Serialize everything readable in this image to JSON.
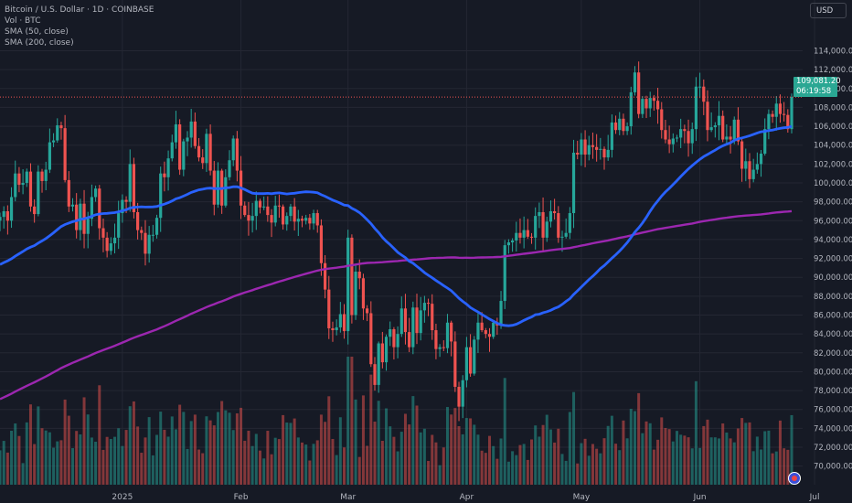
{
  "legend": {
    "symbol": "Bitcoin / U.S. Dollar · 1D · COINBASE",
    "vol": "Vol · BTC",
    "sma50": "SMA (50, close)",
    "sma200": "SMA (200, close)"
  },
  "currency_button": "USD",
  "last_price": {
    "value": "109,081.20",
    "countdown": "06:19:58"
  },
  "colors": {
    "background": "#161a25",
    "up": "#26a69a",
    "down": "#ef5350",
    "sma50": "#2962ff",
    "sma200": "#9c27b0",
    "grid": "#242733",
    "axis_text": "#b2b5be"
  },
  "chart_data": {
    "type": "candlestick",
    "title": "Bitcoin / U.S. Dollar · 1D · COINBASE",
    "x_ticks": [
      "2025",
      "Feb",
      "Mar",
      "Apr",
      "May",
      "Jun",
      "Jul"
    ],
    "y_ticks": [
      "114,000.00",
      "112,000.00",
      "110,000.00",
      "108,000.00",
      "106,000.00",
      "104,000.00",
      "102,000.00",
      "100,000.00",
      "98,000.00",
      "96,000.00",
      "94,000.00",
      "92,000.00",
      "90,000.00",
      "88,000.00",
      "86,000.00",
      "84,000.00",
      "82,000.00",
      "80,000.00",
      "78,000.00",
      "76,000.00",
      "74,000.00",
      "72,000.00",
      "70,000.00"
    ],
    "ylim": [
      69000,
      115500
    ],
    "y_tick_values": [
      114000,
      112000,
      110000,
      108000,
      106000,
      104000,
      102000,
      100000,
      98000,
      96000,
      94000,
      92000,
      90000,
      88000,
      86000,
      84000,
      82000,
      80000,
      78000,
      76000,
      74000,
      72000,
      70000
    ],
    "x_tick_days": [
      32,
      63,
      91,
      122,
      152,
      183,
      213
    ],
    "start_date": "2024-12-01",
    "close": [
      96400,
      97000,
      96000,
      98500,
      101000,
      99800,
      100000,
      101200,
      97500,
      96700,
      101200,
      100200,
      101400,
      104300,
      104500,
      106100,
      105800,
      100300,
      97500,
      97700,
      95000,
      97800,
      94600,
      96200,
      98500,
      99400,
      95200,
      94200,
      92800,
      93600,
      94200,
      96800,
      98200,
      98000,
      102000,
      96900,
      95000,
      94700,
      92500,
      94500,
      94500,
      96300,
      101000,
      100600,
      102600,
      104300,
      106200,
      101400,
      104400,
      104800,
      106500,
      103900,
      102700,
      102100,
      105200,
      101300,
      97700,
      101300,
      97600,
      100600,
      102400,
      104700,
      101300,
      97600,
      96600,
      96000,
      96500,
      98100,
      97400,
      97500,
      96600,
      95800,
      97600,
      97500,
      95600,
      96500,
      97500,
      95900,
      96200,
      96000,
      96300,
      95700,
      96800,
      95500,
      91500,
      88700,
      84600,
      84400,
      84700,
      86100,
      84300,
      94200,
      86000,
      90600,
      89900,
      86700,
      86200,
      80800,
      78600,
      83000,
      81000,
      83700,
      84500,
      82600,
      84000,
      86700,
      84200,
      82600,
      86800,
      84100,
      86500,
      87300,
      87200,
      84400,
      82400,
      82600,
      82500,
      85200,
      83200,
      78400,
      76300,
      79100,
      82600,
      79800,
      83400,
      85200,
      84400,
      84000,
      83700,
      85200,
      84900,
      87500,
      93400,
      93700,
      93900,
      94700,
      94200,
      95000,
      94300,
      94200,
      96500,
      96900,
      94200,
      95900,
      97000,
      96800,
      94200,
      94300,
      94700,
      96800,
      103200,
      103000,
      104600,
      103000,
      104000,
      103800,
      103500,
      103600,
      102700,
      103500,
      106400,
      105600,
      106800,
      105500,
      106000,
      109600,
      111700,
      107300,
      108900,
      107900,
      109000,
      108700,
      107800,
      105600,
      104600,
      104100,
      104700,
      104800,
      105700,
      105500,
      104200,
      105700,
      110200,
      110200,
      108600,
      105600,
      105900,
      106100,
      107100,
      104600,
      104900,
      104600,
      106700,
      104400,
      101500,
      102300,
      100400,
      101400,
      102000,
      103100,
      105700,
      107300,
      107000,
      108400,
      107300,
      107200,
      105700,
      109100
    ]
  }
}
